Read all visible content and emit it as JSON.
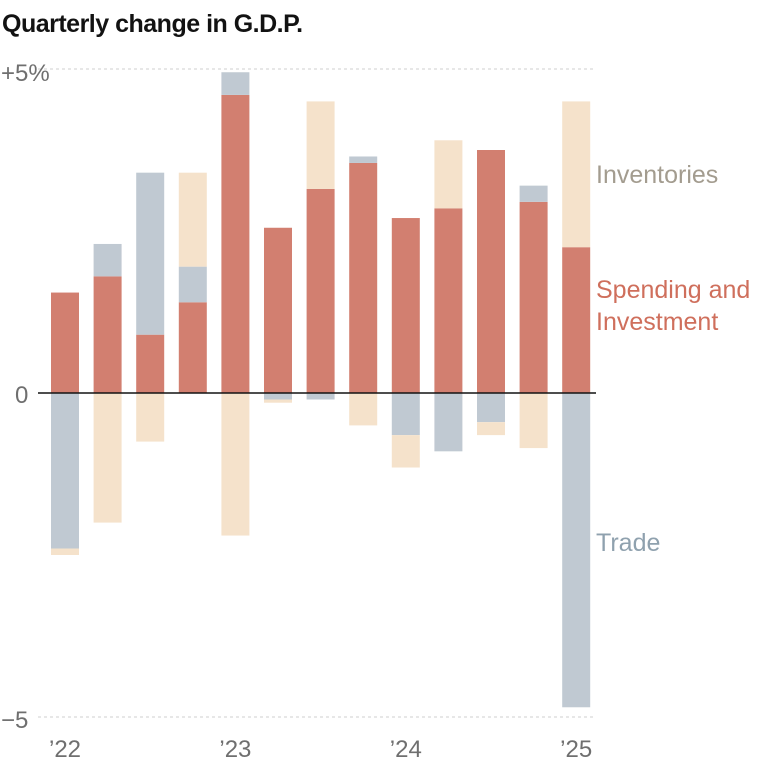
{
  "chart_data": {
    "type": "bar",
    "stacked": true,
    "title": "Quarterly change in G.D.P.",
    "ylim": [
      -5,
      5
    ],
    "y_ticks": [
      {
        "value": 5,
        "label": "+5%"
      },
      {
        "value": 0,
        "label": "0"
      },
      {
        "value": -5,
        "label": "−5"
      }
    ],
    "x_labels": [
      {
        "index": 0,
        "label": "’22"
      },
      {
        "index": 4,
        "label": "’23"
      },
      {
        "index": 8,
        "label": "’24"
      },
      {
        "index": 12,
        "label": "’25"
      }
    ],
    "series": [
      {
        "name": "Spending and Investment",
        "legend": [
          "Spending and",
          "Investment"
        ],
        "color": "#d27f70",
        "values": [
          1.55,
          1.8,
          0.9,
          1.4,
          4.6,
          2.55,
          3.15,
          3.55,
          2.7,
          2.85,
          3.75,
          2.95,
          2.25
        ]
      },
      {
        "name": "Trade",
        "legend": [
          "Trade"
        ],
        "color": "#c0c9d2",
        "values": [
          -2.4,
          0.5,
          2.5,
          0.55,
          0.35,
          -0.1,
          -0.1,
          0.1,
          -0.65,
          -0.9,
          -0.45,
          0.25,
          -4.85
        ]
      },
      {
        "name": "Inventories",
        "legend": [
          "Inventories"
        ],
        "color": "#f5e2cb",
        "values": [
          -0.1,
          -2.0,
          -0.75,
          1.45,
          -2.2,
          -0.05,
          1.35,
          -0.5,
          -0.5,
          1.05,
          -0.2,
          -0.85,
          2.25
        ]
      }
    ]
  }
}
